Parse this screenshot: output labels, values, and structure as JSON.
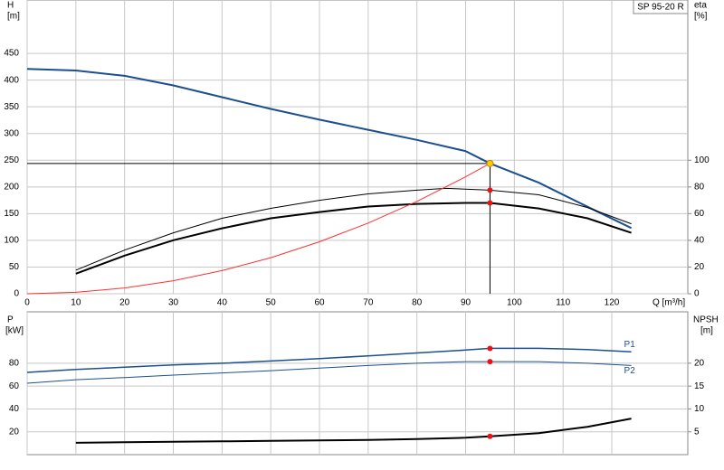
{
  "chart_data": [
    {
      "type": "line",
      "model": "SP 95-20 R",
      "ylabel": "H",
      "yunit": "[m]",
      "y2label": "eta",
      "y2unit": "[%]",
      "xlabel": "Q [m³/h]",
      "xlim": [
        0,
        135.6
      ],
      "xticks": [
        0,
        10,
        20,
        30,
        40,
        50,
        60,
        70,
        80,
        90,
        100,
        110,
        120
      ],
      "ylim": [
        0,
        550
      ],
      "yticks": [
        0,
        50,
        100,
        150,
        200,
        250,
        300,
        350,
        400,
        450
      ],
      "y2lim": [
        0,
        220
      ],
      "y2ticks": [
        0,
        20,
        40,
        60,
        80,
        100
      ],
      "grid": true,
      "series": [
        {
          "color": "#1c4f8f",
          "x": [
            0,
            10,
            20,
            30,
            40,
            50,
            60,
            70,
            80,
            90,
            95,
            105,
            115,
            124
          ],
          "values": [
            421,
            418,
            408,
            390,
            368,
            346,
            326,
            307,
            288,
            267,
            244,
            208,
            163,
            123
          ]
        },
        {
          "color": "#000000",
          "axis": "y2",
          "x": [
            10,
            20,
            30,
            40,
            50,
            60,
            70,
            80,
            86,
            95,
            105,
            115,
            124
          ],
          "values": [
            17.7,
            32.7,
            45.6,
            56.5,
            64,
            70,
            74.8,
            77.6,
            78.9,
            77.6,
            74.1,
            64.6,
            52.4
          ]
        },
        {
          "color": "#000000",
          "axis": "y2",
          "x": [
            10,
            20,
            30,
            40,
            50,
            60,
            70,
            80,
            90,
            95,
            105,
            115,
            124
          ],
          "values": [
            15,
            28.6,
            40.1,
            49,
            56.5,
            61.2,
            65.3,
            67.3,
            68,
            68,
            63.9,
            56.5,
            45.6
          ]
        },
        {
          "color": "#ff3030",
          "x": [
            0,
            10,
            20,
            30,
            40,
            50,
            60,
            70,
            80,
            90,
            95
          ],
          "values": [
            0,
            2.7,
            10.8,
            24.3,
            43.3,
            67.6,
            97.3,
            132.4,
            173,
            219,
            244
          ]
        }
      ],
      "duty_point": {
        "q": 95,
        "h": 244,
        "eta": [
          77.6,
          68
        ]
      }
    },
    {
      "type": "line",
      "ylabel": "P",
      "yunit": "[kW]",
      "y2label": "NPSH",
      "y2unit": "[m]",
      "ylim": [
        0,
        125
      ],
      "yticks": [
        20,
        40,
        60,
        80
      ],
      "y2lim": [
        0,
        31.25
      ],
      "y2ticks": [
        5,
        10,
        15,
        20
      ],
      "grid": true,
      "series": [
        {
          "name": "P1",
          "color": "#1c4f8f",
          "x": [
            0,
            10,
            20,
            30,
            40,
            50,
            60,
            70,
            80,
            90,
            95,
            105,
            115,
            124
          ],
          "values": [
            72,
            74.5,
            76.5,
            78.5,
            80,
            82,
            84,
            86.5,
            89,
            91.5,
            93,
            93,
            92,
            90
          ]
        },
        {
          "name": "P2",
          "color": "#1c4f8f",
          "x": [
            0,
            10,
            20,
            30,
            40,
            50,
            60,
            70,
            80,
            90,
            95,
            105,
            115,
            124
          ],
          "values": [
            62.5,
            65.6,
            67.5,
            69.6,
            71.5,
            73.5,
            75.8,
            78,
            80,
            81.4,
            81.4,
            81.4,
            80,
            78
          ]
        },
        {
          "color": "#000000",
          "axis": "y2",
          "x": [
            10,
            20,
            30,
            40,
            50,
            60,
            70,
            80,
            90,
            95,
            105,
            115,
            124
          ],
          "values": [
            2.6,
            2.7,
            2.8,
            2.9,
            3,
            3.1,
            3.2,
            3.4,
            3.7,
            4,
            4.7,
            6.1,
            7.9
          ]
        }
      ],
      "duty_point": {
        "q": 95,
        "p": [
          93,
          81.4
        ],
        "npsh": 4
      }
    }
  ]
}
